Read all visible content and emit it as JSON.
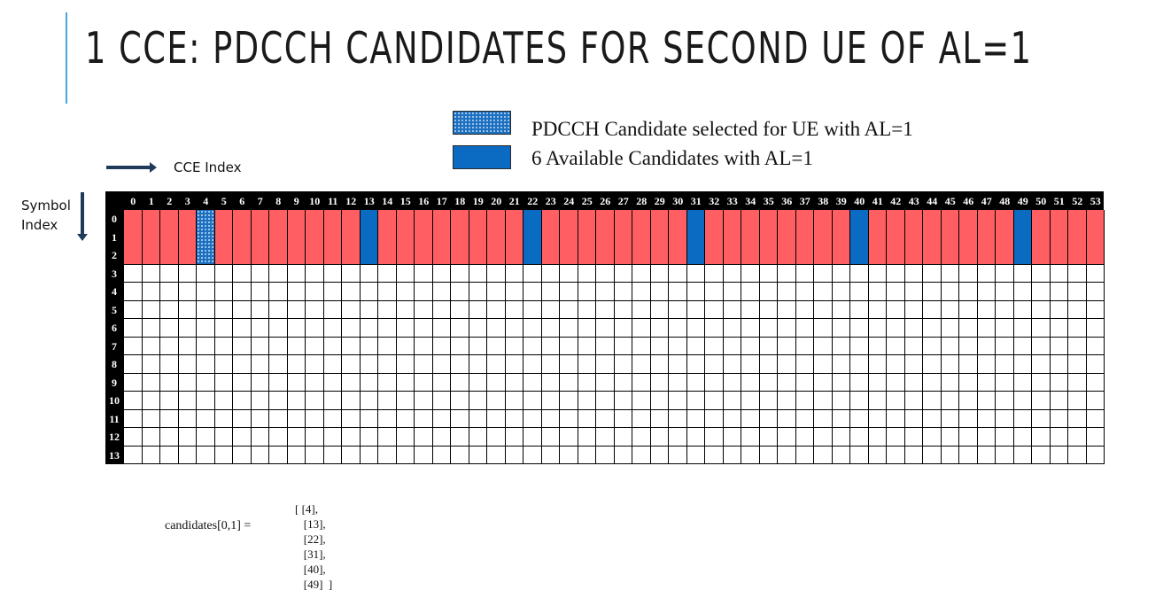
{
  "title": "1 CCE: PDCCH CANDIDATES FOR SECOND UE OF AL=1",
  "legend": {
    "selected_label": "PDCCH Candidate selected for UE with AL=1",
    "available_label": "6 Available Candidates with AL=1",
    "colors": {
      "pdcch": "#ff5f63",
      "candidate": "#0b6ac2",
      "selected": "#1d6fc0",
      "empty": "#ffffff",
      "header": "#000000"
    }
  },
  "axes": {
    "cce_label": "CCE Index",
    "symbol_label_line1": "Symbol",
    "symbol_label_line2": "Index"
  },
  "grid": {
    "columns": 54,
    "rows": 14,
    "column_labels": [
      "0",
      "1",
      "2",
      "3",
      "4",
      "5",
      "6",
      "7",
      "8",
      "9",
      "10",
      "11",
      "12",
      "13",
      "14",
      "15",
      "16",
      "17",
      "18",
      "19",
      "20",
      "21",
      "22",
      "23",
      "24",
      "25",
      "26",
      "27",
      "28",
      "29",
      "30",
      "31",
      "32",
      "33",
      "34",
      "35",
      "36",
      "37",
      "38",
      "39",
      "40",
      "41",
      "42",
      "43",
      "44",
      "45",
      "46",
      "47",
      "48",
      "49",
      "50",
      "51",
      "52",
      "53"
    ],
    "row_labels": [
      "0",
      "1",
      "2",
      "3",
      "4",
      "5",
      "6",
      "7",
      "8",
      "9",
      "10",
      "11",
      "12",
      "13"
    ],
    "pdcch_symbol_rows": [
      0,
      1,
      2
    ],
    "candidate_columns": [
      13,
      22,
      31,
      40,
      49
    ],
    "selected_column": 4
  },
  "candidates": {
    "label": "candidates[0,1]    =",
    "lines": [
      "[ [4],",
      "   [13],",
      "   [22],",
      "   [31],",
      "   [40],",
      "   [49]  ]"
    ]
  }
}
